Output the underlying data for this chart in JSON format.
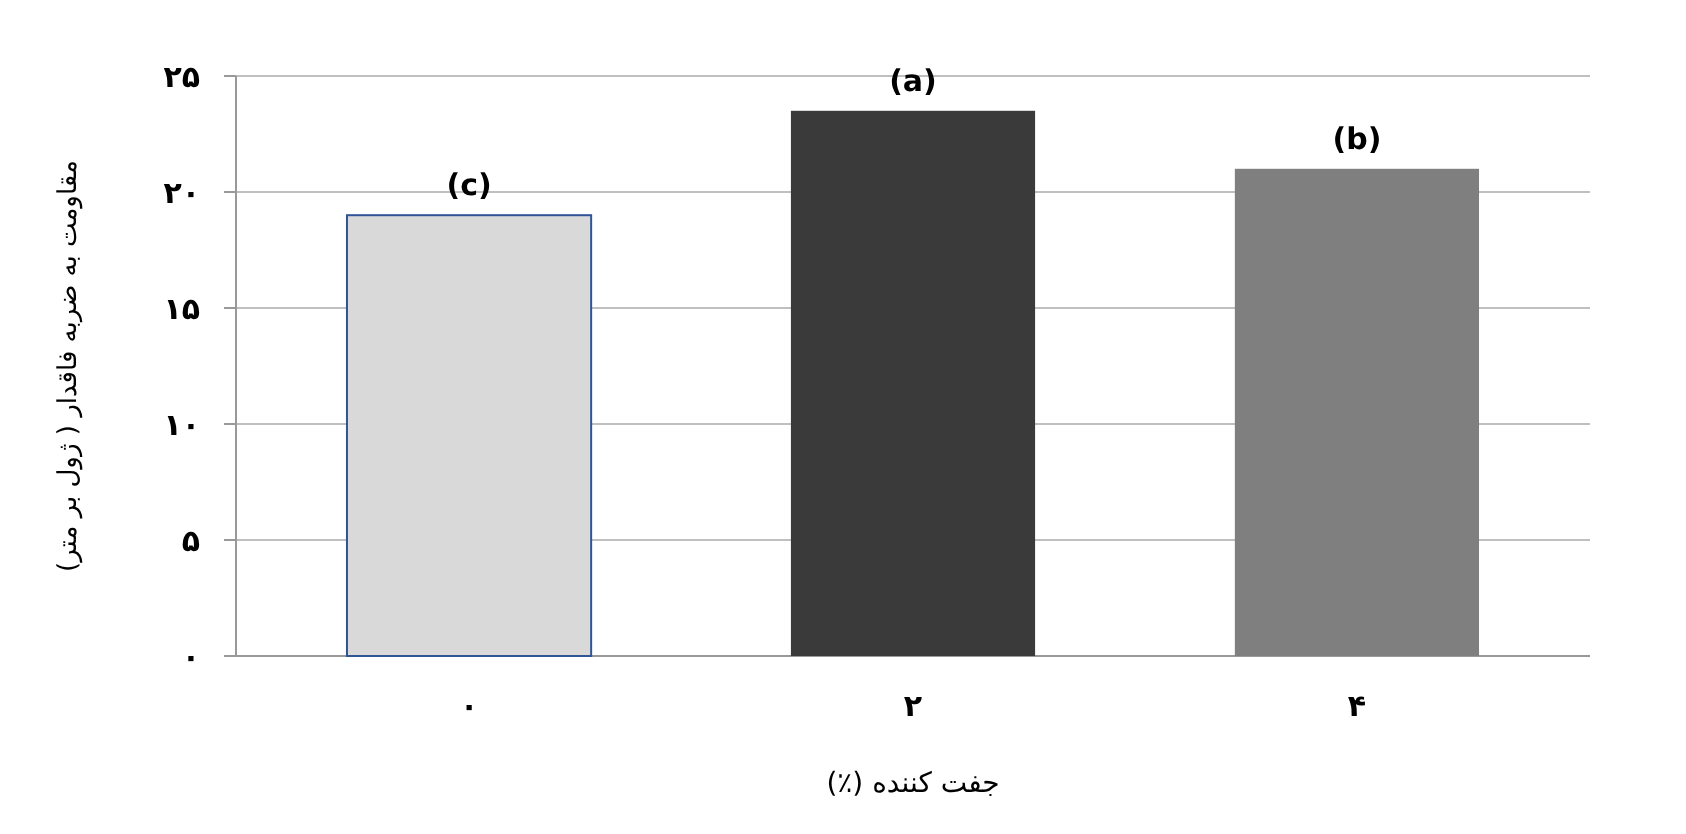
{
  "chart_data": {
    "type": "bar",
    "xlabel": "جفت کننده (٪)",
    "ylabel": "مقاومت به ضربه فاقدار ( ژول بر متر)",
    "categories": [
      "۰",
      "۲",
      "۴"
    ],
    "values": [
      19,
      23.5,
      21
    ],
    "colors": [
      "#d9d9d9",
      "#3a3a3a",
      "#7f7f7f"
    ],
    "ylim": [
      0,
      25
    ],
    "yticks": [
      {
        "value": 0,
        "label": "۰"
      },
      {
        "value": 5,
        "label": "۵"
      },
      {
        "value": 10,
        "label": "۱۰"
      },
      {
        "value": 15,
        "label": "۱۵"
      },
      {
        "value": 20,
        "label": "۲۰"
      },
      {
        "value": 25,
        "label": "۲۵"
      }
    ],
    "grid": "y",
    "annotations": [
      {
        "text": "(c)",
        "x": "۰",
        "y": 19
      },
      {
        "text": "(a)",
        "x": "۲",
        "y": 23.5
      },
      {
        "text": "(b)",
        "x": "۴",
        "y": 21
      }
    ]
  }
}
